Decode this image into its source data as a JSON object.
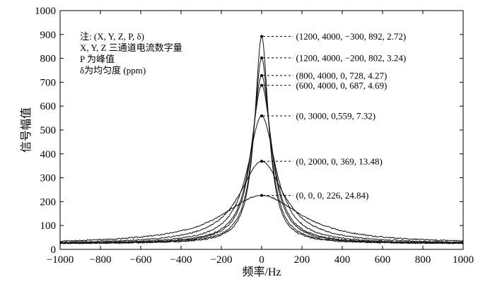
{
  "chart_data": {
    "type": "line",
    "xlabel": "频率/Hz",
    "ylabel": "信号幅值",
    "xlim": [
      -1000,
      1000
    ],
    "ylim": [
      0,
      1000
    ],
    "xticks": [
      -1000,
      -800,
      -600,
      -400,
      -200,
      0,
      200,
      400,
      600,
      800,
      1000
    ],
    "yticks": [
      0,
      100,
      200,
      300,
      400,
      500,
      600,
      700,
      800,
      900,
      1000
    ],
    "xtick_labels": [
      "−1000",
      "−800",
      "−600",
      "−400",
      "−200",
      "0",
      "200",
      "400",
      "600",
      "800",
      "1000"
    ],
    "ytick_labels": [
      "0",
      "100",
      "200",
      "300",
      "400",
      "500",
      "600",
      "700",
      "800",
      "900",
      "1000"
    ],
    "grid": false,
    "legend_note": {
      "lines": [
        "注: (X, Y, Z, P, δ)",
        "X, Y, Z 三通道电流数字量",
        "P 为峰值",
        "δ为均匀度 (ppm)"
      ]
    },
    "annotations": [
      {
        "label": "(1200, 4000, −300, 892, 2.72)",
        "x": 0,
        "y": 892
      },
      {
        "label": "(1200, 4000, −200, 802, 3.24)",
        "x": 0,
        "y": 802
      },
      {
        "label": "(800, 4000, 0, 728, 4.27)",
        "x": 0,
        "y": 728
      },
      {
        "label": "(600, 4000, 0, 687, 4.69)",
        "x": 0,
        "y": 687
      },
      {
        "label": "(0, 3000, 0,559, 7.32)",
        "x": 0,
        "y": 559
      },
      {
        "label": "(0, 2000, 0, 369, 13.48)",
        "x": 0,
        "y": 369
      },
      {
        "label": "(0, 0, 0, 226, 24.84)",
        "x": 0,
        "y": 226
      }
    ],
    "series": [
      {
        "peak": 892,
        "peak_x": 0,
        "gamma": 42,
        "baseline": 24,
        "bump": null
      },
      {
        "peak": 802,
        "peak_x": 0,
        "gamma": 48,
        "baseline": 24,
        "bump": null
      },
      {
        "peak": 728,
        "peak_x": 0,
        "gamma": 58,
        "baseline": 24,
        "bump": null
      },
      {
        "peak": 687,
        "peak_x": 0,
        "gamma": 64,
        "baseline": 24,
        "bump": null
      },
      {
        "peak": 559,
        "peak_x": 0,
        "gamma": 85,
        "baseline": 24,
        "bump": {
          "x": 40,
          "y": 480
        }
      },
      {
        "peak": 369,
        "peak_x": 0,
        "gamma": 135,
        "baseline": 24,
        "bump": {
          "x": 60,
          "y": 320
        }
      },
      {
        "peak": 226,
        "peak_x": 0,
        "gamma": 240,
        "baseline": 24,
        "bump": {
          "x": -160,
          "y": 180
        }
      }
    ]
  }
}
